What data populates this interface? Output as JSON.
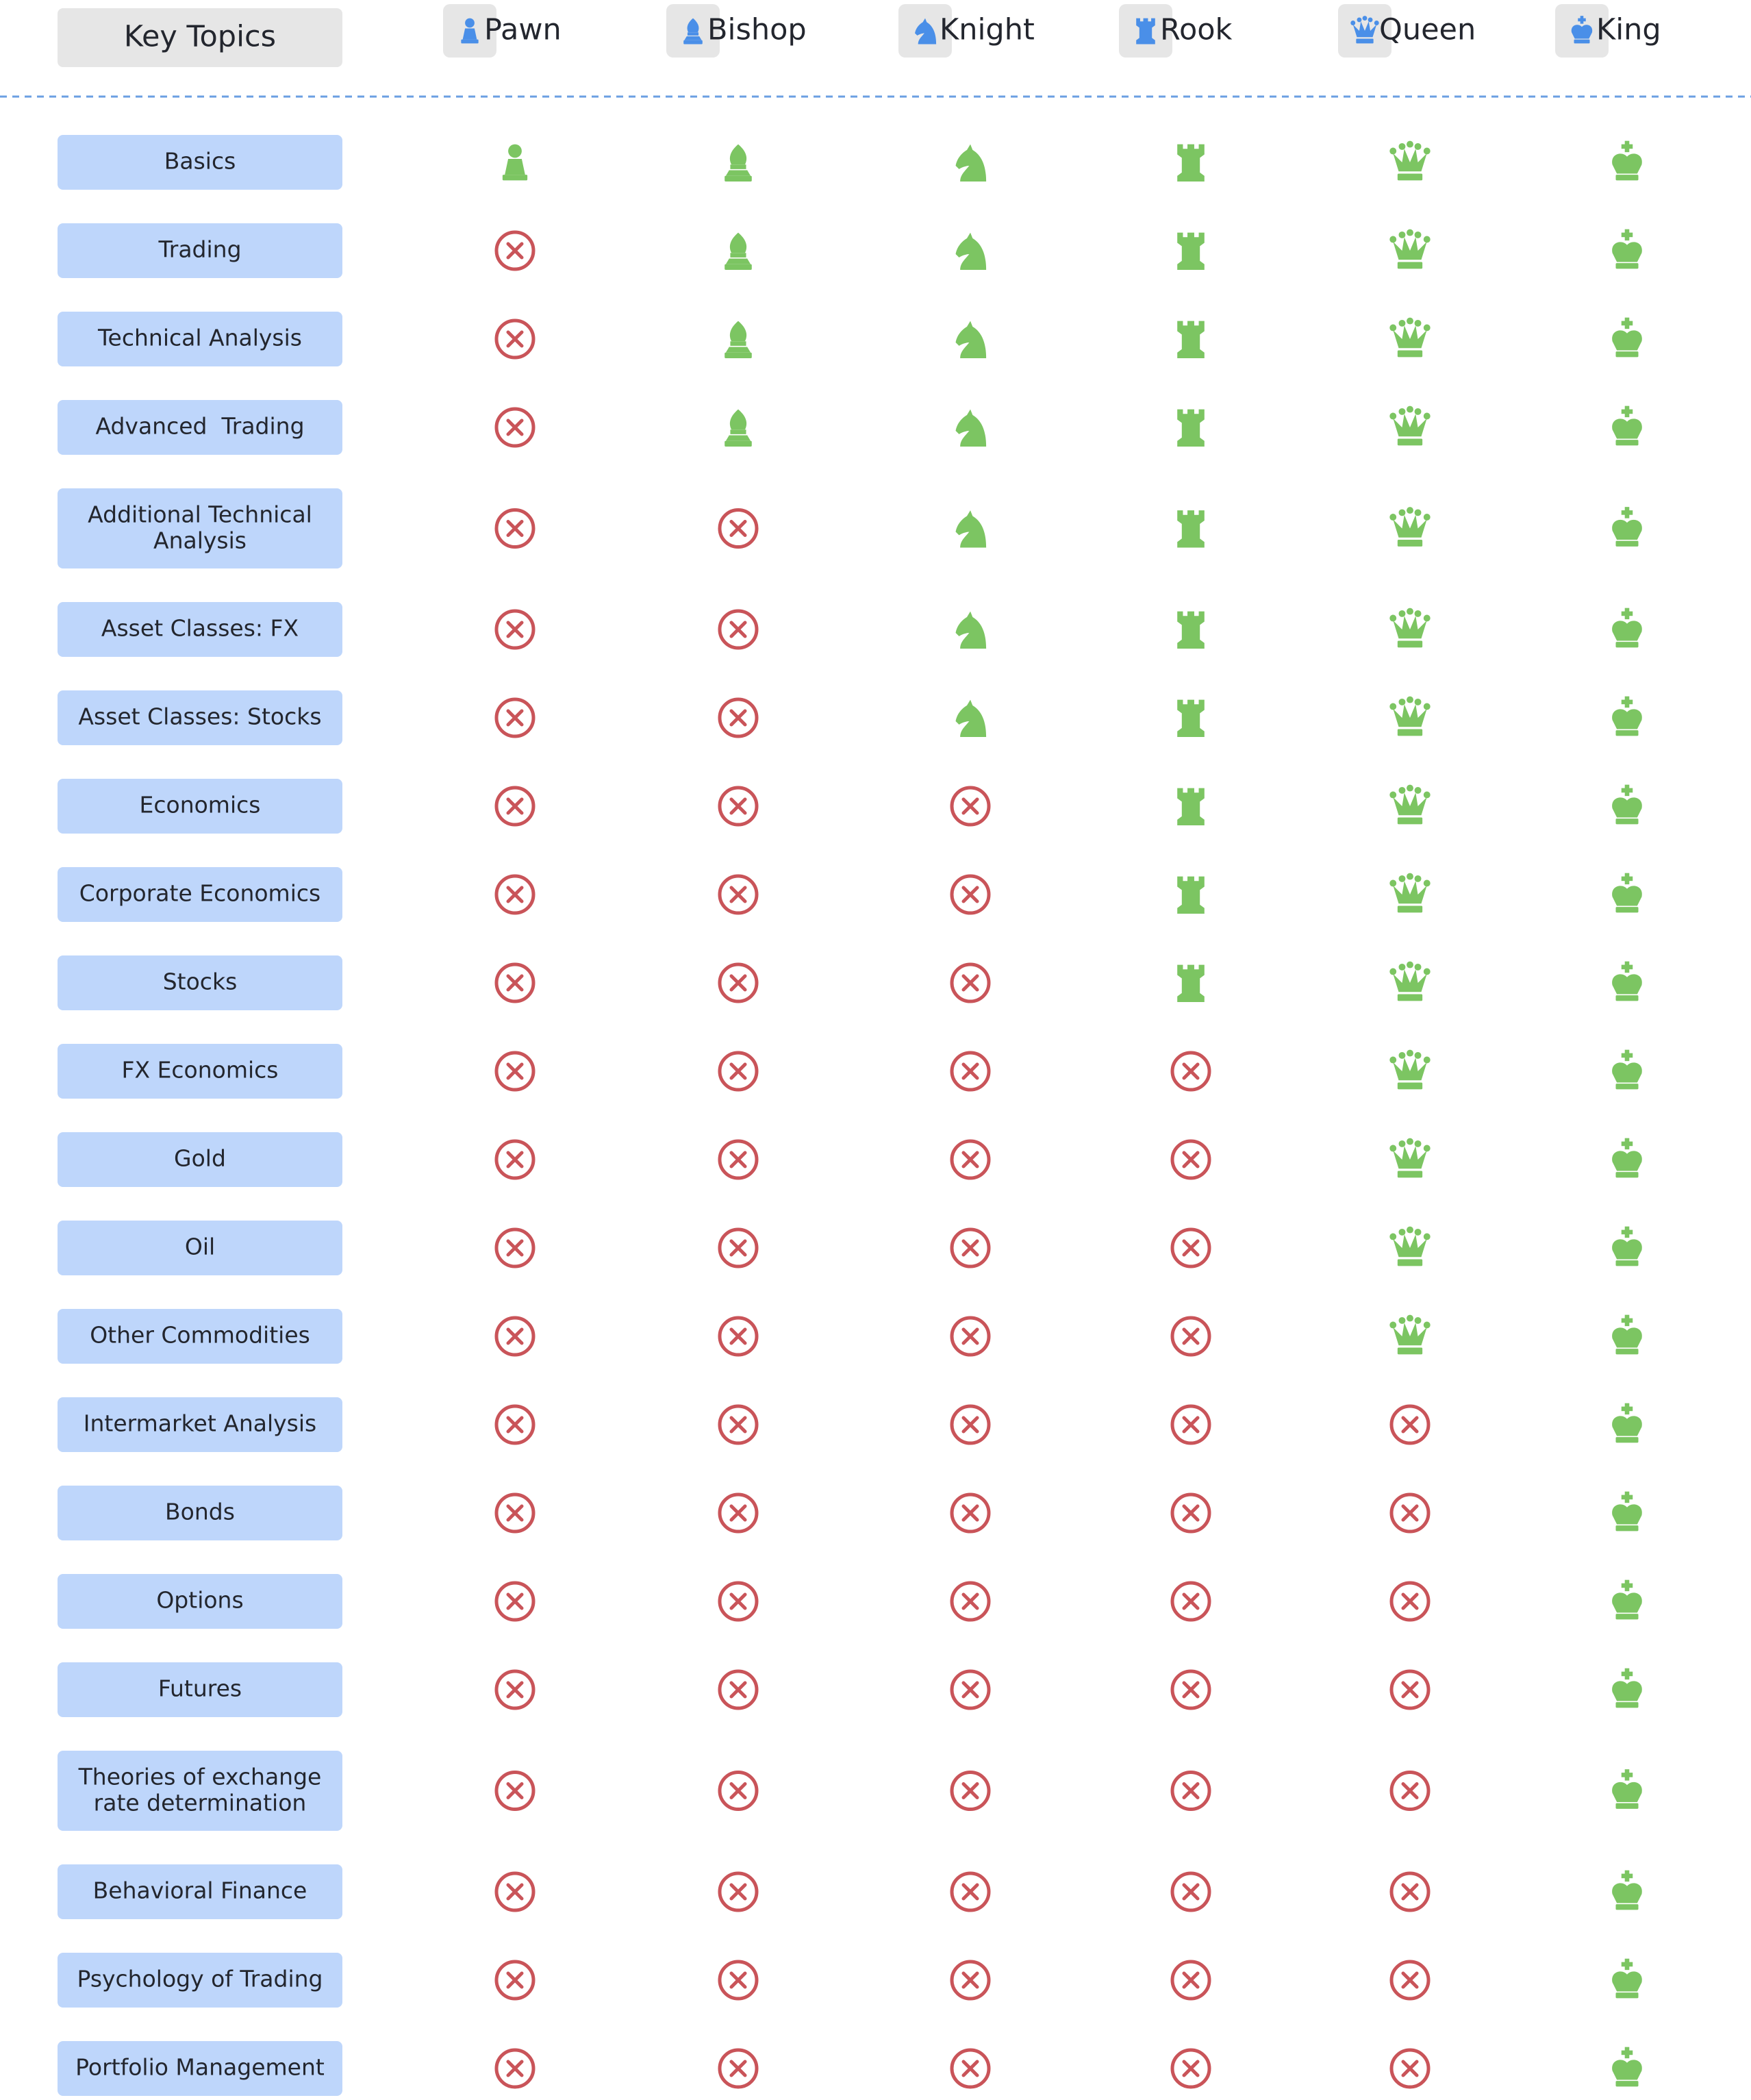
{
  "header": {
    "title": "Key Topics",
    "columns": [
      "Pawn",
      "Bishop",
      "Knight",
      "Rook",
      "Queen",
      "King"
    ]
  },
  "table": {
    "rows": [
      {
        "label": "Basics",
        "included": [
          true,
          true,
          true,
          true,
          true,
          true
        ]
      },
      {
        "label": "Trading",
        "included": [
          false,
          true,
          true,
          true,
          true,
          true
        ]
      },
      {
        "label": "Technical Analysis",
        "included": [
          false,
          true,
          true,
          true,
          true,
          true
        ]
      },
      {
        "label": "Advanced  Trading",
        "included": [
          false,
          true,
          true,
          true,
          true,
          true
        ]
      },
      {
        "label": "Additional Technical Analysis",
        "included": [
          false,
          false,
          true,
          true,
          true,
          true
        ]
      },
      {
        "label": "Asset Classes: FX",
        "included": [
          false,
          false,
          true,
          true,
          true,
          true
        ]
      },
      {
        "label": "Asset Classes: Stocks",
        "included": [
          false,
          false,
          true,
          true,
          true,
          true
        ]
      },
      {
        "label": "Economics",
        "included": [
          false,
          false,
          false,
          true,
          true,
          true
        ]
      },
      {
        "label": "Corporate Economics",
        "included": [
          false,
          false,
          false,
          true,
          true,
          true
        ]
      },
      {
        "label": "Stocks",
        "included": [
          false,
          false,
          false,
          true,
          true,
          true
        ]
      },
      {
        "label": "FX Economics",
        "included": [
          false,
          false,
          false,
          false,
          true,
          true
        ]
      },
      {
        "label": "Gold",
        "included": [
          false,
          false,
          false,
          false,
          true,
          true
        ]
      },
      {
        "label": "Oil",
        "included": [
          false,
          false,
          false,
          false,
          true,
          true
        ]
      },
      {
        "label": "Other Commodities",
        "included": [
          false,
          false,
          false,
          false,
          true,
          true
        ]
      },
      {
        "label": "Intermarket Analysis",
        "included": [
          false,
          false,
          false,
          false,
          false,
          true
        ]
      },
      {
        "label": "Bonds",
        "included": [
          false,
          false,
          false,
          false,
          false,
          true
        ]
      },
      {
        "label": "Options",
        "included": [
          false,
          false,
          false,
          false,
          false,
          true
        ]
      },
      {
        "label": "Futures",
        "included": [
          false,
          false,
          false,
          false,
          false,
          true
        ]
      },
      {
        "label": "Theories of exchange rate determination",
        "included": [
          false,
          false,
          false,
          false,
          false,
          true
        ]
      },
      {
        "label": "Behavioral Finance",
        "included": [
          false,
          false,
          false,
          false,
          false,
          true
        ]
      },
      {
        "label": "Psychology of Trading",
        "included": [
          false,
          false,
          false,
          false,
          false,
          true
        ]
      },
      {
        "label": "Portfolio Management",
        "included": [
          false,
          false,
          false,
          false,
          false,
          true
        ]
      }
    ]
  }
}
